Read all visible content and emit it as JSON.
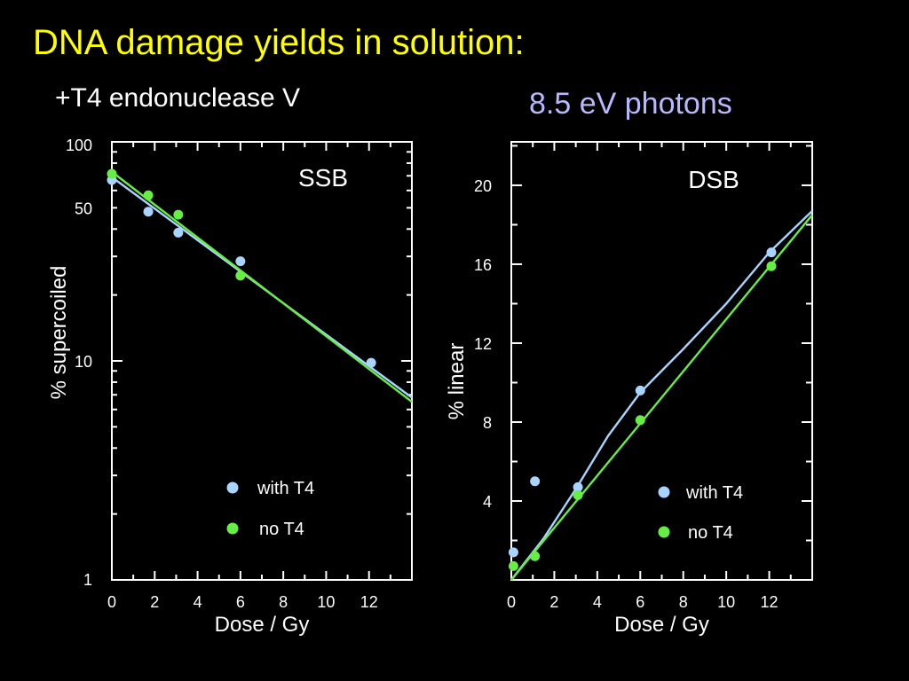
{
  "slide": {
    "title": "DNA damage yields in solution:",
    "subtitle_left": "+T4 endonuclease V",
    "subtitle_right": "8.5 eV photons"
  },
  "colors": {
    "title": "#ffff00",
    "subtitle_right": "#b8b8ff",
    "with_t4": "#a8d4ff",
    "no_t4": "#66ee44",
    "axes": "#ffffff",
    "background": "#000000"
  },
  "chart_data": [
    {
      "id": "ssb",
      "type": "scatter",
      "title": "SSB",
      "xlabel": "Dose / Gy",
      "ylabel": "% supercoiled",
      "yscale": "log",
      "xlim": [
        0,
        14
      ],
      "ylim": [
        1,
        100
      ],
      "x_ticks": [
        0,
        2,
        4,
        6,
        8,
        10,
        12
      ],
      "y_tick_labels": [
        1,
        10,
        50,
        100
      ],
      "legend": [
        "with T4",
        "no T4"
      ],
      "legend_position": "bottom-right",
      "series": [
        {
          "name": "with T4",
          "color": "#a8d4ff",
          "points": [
            [
              0,
              67
            ],
            [
              1.7,
              48
            ],
            [
              3.1,
              38.5
            ],
            [
              6.0,
              28.5
            ],
            [
              12.1,
              9.8
            ]
          ],
          "fit": [
            [
              0,
              69
            ],
            [
              14,
              6.8
            ]
          ]
        },
        {
          "name": "no T4",
          "color": "#66ee44",
          "points": [
            [
              0,
              71.5
            ],
            [
              1.7,
              57
            ],
            [
              3.1,
              46.5
            ],
            [
              6.0,
              24.5
            ]
          ],
          "fit": [
            [
              0,
              73
            ],
            [
              14,
              6.5
            ]
          ]
        }
      ]
    },
    {
      "id": "dsb",
      "type": "scatter",
      "title": "DSB",
      "xlabel": "Dose / Gy",
      "ylabel": "% linear",
      "yscale": "linear",
      "xlim": [
        0,
        14
      ],
      "ylim": [
        0,
        22.2
      ],
      "x_ticks": [
        0,
        2,
        4,
        6,
        8,
        10,
        12
      ],
      "y_tick_labels": [
        4,
        8,
        12,
        16,
        20
      ],
      "legend": [
        "with T4",
        "no T4"
      ],
      "legend_position": "bottom-right",
      "series": [
        {
          "name": "with T4",
          "color": "#a8d4ff",
          "points": [
            [
              0.1,
              1.4
            ],
            [
              1.1,
              5.0
            ],
            [
              3.1,
              4.7
            ],
            [
              6.0,
              9.6
            ],
            [
              12.1,
              16.6
            ]
          ],
          "fit": [
            [
              0,
              0
            ],
            [
              1.5,
              2.1
            ],
            [
              3,
              4.6
            ],
            [
              4.5,
              7.3
            ],
            [
              6,
              9.5
            ],
            [
              8,
              11.7
            ],
            [
              10,
              14.0
            ],
            [
              12,
              16.6
            ],
            [
              14,
              18.7
            ]
          ]
        },
        {
          "name": "no T4",
          "color": "#66ee44",
          "points": [
            [
              0.1,
              0.7
            ],
            [
              1.1,
              1.2
            ],
            [
              3.1,
              4.3
            ],
            [
              6.0,
              8.1
            ],
            [
              12.1,
              15.9
            ]
          ],
          "fit": [
            [
              0,
              0
            ],
            [
              14,
              18.5
            ]
          ]
        }
      ]
    }
  ]
}
